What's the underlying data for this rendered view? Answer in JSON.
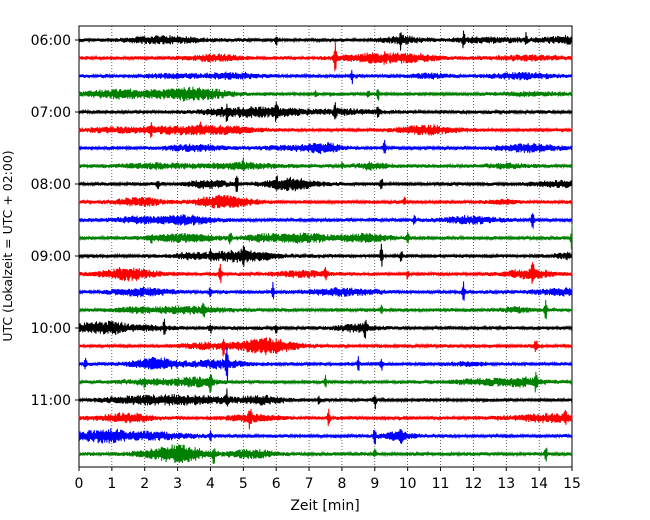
{
  "chart_data": {
    "type": "line",
    "xlabel": "Zeit  [min]",
    "ylabel": "UTC (Lokalzeit = UTC + 02:00)",
    "xlim": [
      0,
      15
    ],
    "x_ticks": [
      "0",
      "1",
      "2",
      "3",
      "4",
      "5",
      "6",
      "7",
      "8",
      "9",
      "10",
      "11",
      "12",
      "13",
      "14",
      "15"
    ],
    "y_tick_labels": [
      "06:00",
      "07:00",
      "08:00",
      "09:00",
      "10:00",
      "11:00"
    ],
    "grid": "vertical dotted",
    "trace_colors": [
      "#000000",
      "#ff0000",
      "#0000ff",
      "#008000"
    ],
    "series": [
      {
        "start": "06:00",
        "color": "#000000",
        "events": [
          [
            9.8,
            0.5
          ],
          [
            11.7,
            0.45
          ],
          [
            13.6,
            0.35
          ],
          [
            6.0,
            0.3
          ]
        ]
      },
      {
        "start": "06:15",
        "color": "#ff0000",
        "events": [
          [
            7.8,
            0.8
          ],
          [
            9.3,
            0.3
          ]
        ]
      },
      {
        "start": "06:30",
        "color": "#0000ff",
        "events": [
          [
            8.3,
            0.5
          ]
        ]
      },
      {
        "start": "06:45",
        "color": "#008000",
        "events": [
          [
            8.8,
            0.35
          ],
          [
            9.1,
            0.4
          ],
          [
            7.2,
            0.2
          ]
        ]
      },
      {
        "start": "07:00",
        "color": "#000000",
        "events": [
          [
            7.8,
            0.6
          ],
          [
            9.1,
            0.35
          ],
          [
            4.5,
            0.4
          ],
          [
            6.0,
            0.35
          ]
        ]
      },
      {
        "start": "07:15",
        "color": "#ff0000",
        "events": [
          [
            3.7,
            0.25
          ],
          [
            2.2,
            0.3
          ]
        ]
      },
      {
        "start": "07:30",
        "color": "#0000ff",
        "events": [
          [
            9.3,
            0.5
          ]
        ]
      },
      {
        "start": "07:45",
        "color": "#008000",
        "events": [
          [
            5.0,
            0.25
          ],
          [
            8.0,
            0.25
          ]
        ]
      },
      {
        "start": "08:00",
        "color": "#000000",
        "events": [
          [
            4.8,
            0.7
          ],
          [
            9.2,
            0.45
          ],
          [
            6.0,
            0.35
          ],
          [
            2.4,
            0.3
          ]
        ]
      },
      {
        "start": "08:15",
        "color": "#ff0000",
        "events": [
          [
            9.9,
            0.3
          ]
        ]
      },
      {
        "start": "08:30",
        "color": "#0000ff",
        "events": [
          [
            13.8,
            0.55
          ],
          [
            10.2,
            0.3
          ]
        ]
      },
      {
        "start": "08:45",
        "color": "#008000",
        "events": [
          [
            4.6,
            0.55
          ],
          [
            15.0,
            0.8
          ],
          [
            10.0,
            0.3
          ],
          [
            2.2,
            0.2
          ]
        ]
      },
      {
        "start": "09:00",
        "color": "#000000",
        "events": [
          [
            9.2,
            0.7
          ],
          [
            9.8,
            0.35
          ],
          [
            5.0,
            0.45
          ],
          [
            4.0,
            0.3
          ]
        ]
      },
      {
        "start": "09:15",
        "color": "#ff0000",
        "events": [
          [
            4.3,
            0.75
          ],
          [
            13.8,
            0.55
          ],
          [
            10.0,
            0.3
          ],
          [
            7.5,
            0.3
          ]
        ]
      },
      {
        "start": "09:30",
        "color": "#0000ff",
        "events": [
          [
            5.9,
            0.7
          ],
          [
            11.7,
            0.6
          ],
          [
            4.0,
            0.3
          ]
        ]
      },
      {
        "start": "09:45",
        "color": "#008000",
        "events": [
          [
            3.8,
            0.5
          ],
          [
            14.2,
            0.55
          ],
          [
            9.2,
            0.3
          ]
        ]
      },
      {
        "start": "10:00",
        "color": "#000000",
        "events": [
          [
            8.7,
            0.55
          ],
          [
            4.0,
            0.4
          ],
          [
            2.6,
            0.45
          ],
          [
            6.0,
            0.3
          ]
        ]
      },
      {
        "start": "10:15",
        "color": "#ff0000",
        "events": [
          [
            4.4,
            0.6
          ],
          [
            13.9,
            0.5
          ]
        ]
      },
      {
        "start": "10:30",
        "color": "#0000ff",
        "events": [
          [
            8.5,
            0.4
          ],
          [
            9.2,
            0.45
          ],
          [
            0.2,
            0.3
          ],
          [
            4.5,
            1.0
          ]
        ]
      },
      {
        "start": "10:45",
        "color": "#008000",
        "events": [
          [
            4.0,
            0.5
          ],
          [
            13.9,
            0.55
          ],
          [
            2.0,
            0.35
          ],
          [
            7.5,
            0.35
          ]
        ]
      },
      {
        "start": "11:00",
        "color": "#000000",
        "events": [
          [
            9.0,
            0.6
          ],
          [
            4.5,
            0.5
          ],
          [
            7.3,
            0.3
          ]
        ]
      },
      {
        "start": "11:15",
        "color": "#ff0000",
        "events": [
          [
            5.2,
            0.6
          ],
          [
            7.6,
            0.55
          ],
          [
            14.8,
            0.3
          ]
        ]
      },
      {
        "start": "11:30",
        "color": "#0000ff",
        "events": [
          [
            9.0,
            0.55
          ],
          [
            9.8,
            0.3
          ],
          [
            4.0,
            0.3
          ]
        ]
      },
      {
        "start": "11:45",
        "color": "#008000",
        "events": [
          [
            4.1,
            0.55
          ],
          [
            14.2,
            0.55
          ],
          [
            9.0,
            0.3
          ]
        ]
      }
    ]
  }
}
